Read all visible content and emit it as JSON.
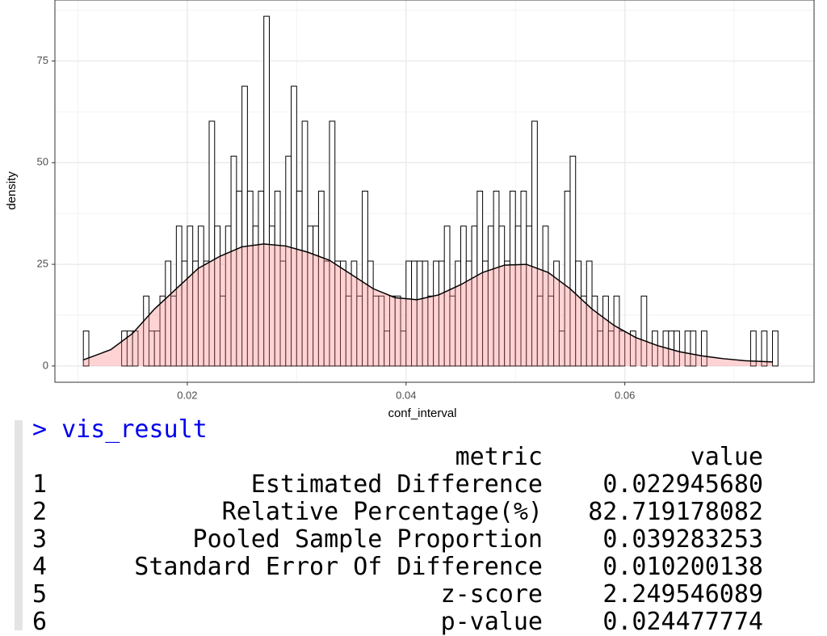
{
  "chart_data": {
    "type": "histogram",
    "xlabel": "conf_interval",
    "ylabel": "density",
    "bins": [
      0.0105,
      0.011,
      0.0115,
      0.012,
      0.0125,
      0.013,
      0.0135,
      0.014,
      0.0145,
      0.015,
      0.0155,
      0.016,
      0.0165,
      0.017,
      0.0175,
      0.018,
      0.0185,
      0.019,
      0.0195,
      0.02,
      0.0205,
      0.021,
      0.0215,
      0.022,
      0.0225,
      0.023,
      0.0235,
      0.024,
      0.0245,
      0.025,
      0.0255,
      0.026,
      0.0265,
      0.027,
      0.0275,
      0.028,
      0.0285,
      0.029,
      0.0295,
      0.03,
      0.0305,
      0.031,
      0.0315,
      0.032,
      0.0325,
      0.033,
      0.0335,
      0.034,
      0.0345,
      0.035,
      0.0355,
      0.036,
      0.0365,
      0.037,
      0.0375,
      0.038,
      0.0385,
      0.039,
      0.0395,
      0.04,
      0.0405,
      0.041,
      0.0415,
      0.042,
      0.0425,
      0.043,
      0.0435,
      0.044,
      0.0445,
      0.045,
      0.0455,
      0.046,
      0.0465,
      0.047,
      0.0475,
      0.048,
      0.0485,
      0.049,
      0.0495,
      0.05,
      0.0505,
      0.051,
      0.0515,
      0.052,
      0.0525,
      0.053,
      0.0535,
      0.054,
      0.0545,
      0.055,
      0.0555,
      0.056,
      0.0565,
      0.057,
      0.0575,
      0.058,
      0.0585,
      0.059,
      0.0595,
      0.06,
      0.0605,
      0.061,
      0.0615,
      0.062,
      0.0625,
      0.063,
      0.0635,
      0.064,
      0.0645,
      0.065,
      0.0655,
      0.066,
      0.0665,
      0.067,
      0.0675,
      0.068,
      0.0685,
      0.069,
      0.0695,
      0.07,
      0.0705,
      0.071,
      0.0715,
      0.072,
      0.0725,
      0.073,
      0.0735,
      0.074
    ],
    "values": [
      8.6,
      0,
      0,
      0,
      0,
      0,
      0,
      8.6,
      8.6,
      8.6,
      0,
      17.2,
      8.6,
      8.6,
      17.2,
      25.8,
      17.2,
      34.4,
      25.8,
      34.4,
      25.8,
      34.4,
      25.8,
      60.2,
      34.4,
      17.2,
      34.4,
      51.6,
      43,
      68.8,
      43,
      34.4,
      43,
      86,
      34.4,
      43,
      25.8,
      51.6,
      68.8,
      43,
      60.2,
      34.4,
      34.4,
      43,
      25.8,
      60.2,
      25.8,
      25.8,
      17.2,
      25.8,
      17.2,
      43,
      25.8,
      17.2,
      17.2,
      8.6,
      17.2,
      17.2,
      8.6,
      25.8,
      25.8,
      25.8,
      25.8,
      17.2,
      25.8,
      25.8,
      34.4,
      17.2,
      25.8,
      34.4,
      25.8,
      34.4,
      43,
      25.8,
      34.4,
      43,
      34.4,
      25.8,
      43,
      34.4,
      43,
      34.4,
      60.2,
      17.2,
      34.4,
      17.2,
      25.8,
      8.6,
      43,
      51.6,
      25.8,
      17.2,
      25.8,
      17.2,
      8.6,
      17.2,
      8.6,
      17.2,
      8.6,
      0,
      8.6,
      0,
      17.2,
      0,
      8.6,
      0,
      8.6,
      8.6,
      8.6,
      0,
      8.6,
      8.6,
      0,
      8.6,
      0,
      0,
      0,
      0,
      0,
      0,
      0,
      0,
      8.6,
      0,
      8.6,
      0,
      8.6
    ],
    "color": "#ffffff",
    "edgecolor": "#000000",
    "density_curve": {
      "x": [
        0.0105,
        0.013,
        0.015,
        0.017,
        0.019,
        0.021,
        0.023,
        0.025,
        0.027,
        0.029,
        0.031,
        0.033,
        0.035,
        0.037,
        0.039,
        0.041,
        0.043,
        0.045,
        0.047,
        0.049,
        0.051,
        0.053,
        0.055,
        0.057,
        0.059,
        0.061,
        0.063,
        0.065,
        0.067,
        0.069,
        0.071,
        0.0735
      ],
      "values": [
        1.5,
        4,
        8,
        14,
        19,
        24,
        27,
        29.3,
        30,
        29.5,
        28,
        26,
        22.5,
        19,
        16.8,
        16.3,
        17.5,
        20,
        23,
        24.8,
        25,
        23,
        19,
        14,
        10,
        7,
        5,
        3.5,
        2.5,
        1.8,
        1.3,
        1
      ],
      "color": "#000000",
      "fill": "#ff8080"
    },
    "xlim": [
      0.0079,
      0.0773
    ],
    "ylim": [
      -4,
      90
    ],
    "xticks": [
      0.02,
      0.04,
      0.06
    ],
    "yticks": [
      0,
      25,
      50,
      75
    ],
    "grid": true
  },
  "console": {
    "command": "> vis_result",
    "header": [
      "metric",
      "value"
    ],
    "rows": [
      [
        "1",
        "Estimated Difference",
        "0.022945680"
      ],
      [
        "2",
        "Relative Percentage(%)",
        "82.719178082"
      ],
      [
        "3",
        "Pooled Sample Proportion",
        "0.039283253"
      ],
      [
        "4",
        "Standard Error Of Difference",
        "0.010200138"
      ],
      [
        "5",
        "z-score",
        "2.249546089"
      ],
      [
        "6",
        "p-value",
        "0.024477774"
      ]
    ]
  }
}
